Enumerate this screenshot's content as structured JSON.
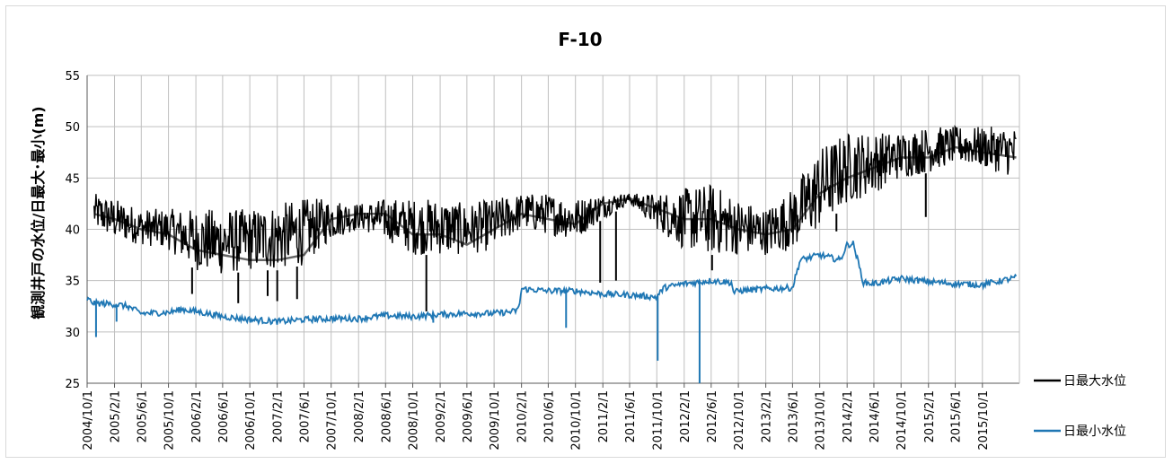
{
  "chart_data": {
    "type": "line",
    "title": "F-10",
    "ylabel": "観測井戸の水位/日最大･最小(m)",
    "xlabel": "",
    "ylim": [
      25,
      55
    ],
    "yticks": [
      25,
      30,
      35,
      40,
      45,
      50,
      55
    ],
    "xlim": [
      "2004/10/1",
      "2016/3/15"
    ],
    "x_tick_labels": [
      "2004/10/1",
      "2005/2/1",
      "2005/6/1",
      "2005/10/1",
      "2006/2/1",
      "2006/6/1",
      "2006/10/1",
      "2007/2/1",
      "2007/6/1",
      "2007/10/1",
      "2008/2/1",
      "2008/6/1",
      "2008/10/1",
      "2009/2/1",
      "2009/6/1",
      "2009/10/1",
      "2010/2/1",
      "2010/6/1",
      "2010/10/1",
      "2011/2/1",
      "2011/6/1",
      "2011/10/1",
      "2012/2/1",
      "2012/6/1",
      "2012/10/1",
      "2013/2/1",
      "2013/6/1",
      "2013/10/1",
      "2014/2/1",
      "2014/6/1",
      "2014/10/1",
      "2015/2/1",
      "2015/6/1",
      "2015/10/1"
    ],
    "grid": "vertical-and-horizontal",
    "legend_position": "right",
    "series": [
      {
        "name": "日最大水位",
        "color": "#000000",
        "x": [
          "2004/11/1",
          "2005/2/1",
          "2005/6/1",
          "2005/10/1",
          "2006/2/1",
          "2006/6/1",
          "2006/10/1",
          "2007/2/1",
          "2007/6/1",
          "2007/10/1",
          "2008/2/1",
          "2008/6/1",
          "2008/10/1",
          "2009/2/1",
          "2009/6/1",
          "2009/10/1",
          "2010/2/1",
          "2010/6/1",
          "2010/10/1",
          "2011/2/1",
          "2011/6/1",
          "2011/10/1",
          "2012/2/1",
          "2012/6/1",
          "2012/10/1",
          "2013/2/1",
          "2013/6/1",
          "2013/10/1",
          "2014/2/1",
          "2014/6/1",
          "2014/10/1",
          "2015/2/1",
          "2015/6/1",
          "2015/10/1",
          "2016/3/1"
        ],
        "values": [
          41.5,
          41.0,
          40.0,
          39.5,
          38.0,
          37.5,
          37.0,
          37.0,
          37.5,
          41.0,
          41.5,
          41.5,
          39.5,
          39.5,
          38.5,
          40.0,
          41.5,
          41.0,
          40.5,
          42.5,
          43.0,
          42.0,
          41.0,
          41.0,
          40.0,
          39.5,
          40.0,
          43.5,
          45.0,
          46.0,
          47.0,
          47.0,
          48.0,
          47.5,
          47.0
        ],
        "band_low": [
          40.0,
          39.0,
          38.5,
          38.0,
          36.0,
          35.5,
          36.0,
          36.0,
          36.5,
          39.0,
          40.0,
          39.0,
          37.5,
          37.5,
          37.5,
          38.0,
          40.0,
          39.5,
          39.0,
          41.0,
          42.5,
          40.0,
          38.0,
          37.5,
          37.5,
          37.5,
          38.0,
          40.0,
          42.5,
          43.5,
          45.0,
          45.5,
          46.5,
          46.0,
          45.0
        ],
        "band_high": [
          43.5,
          43.0,
          42.0,
          42.0,
          42.0,
          42.0,
          42.0,
          42.5,
          43.0,
          43.0,
          42.5,
          43.0,
          43.0,
          43.0,
          42.5,
          43.0,
          43.5,
          43.5,
          43.0,
          43.5,
          43.5,
          43.5,
          44.0,
          44.5,
          43.0,
          42.0,
          44.0,
          48.0,
          49.5,
          49.5,
          49.5,
          50.0,
          50.0,
          50.0,
          50.0
        ],
        "dips": [
          {
            "x": "2006/1/15",
            "value": 33.7
          },
          {
            "x": "2006/8/10",
            "value": 32.8
          },
          {
            "x": "2006/12/20",
            "value": 33.5
          },
          {
            "x": "2007/2/1",
            "value": 33.0
          },
          {
            "x": "2007/5/1",
            "value": 33.2
          },
          {
            "x": "2008/12/1",
            "value": 32.0
          },
          {
            "x": "2011/1/20",
            "value": 34.8
          },
          {
            "x": "2011/4/1",
            "value": 35.0
          },
          {
            "x": "2012/6/5",
            "value": 36.0
          },
          {
            "x": "2013/12/15",
            "value": 39.8
          },
          {
            "x": "2015/1/20",
            "value": 41.2
          }
        ]
      },
      {
        "name": "日最小水位",
        "color": "#1f77b4",
        "x": [
          "2004/10/1",
          "2004/11/1",
          "2005/2/1",
          "2005/4/1",
          "2005/6/1",
          "2005/10/1",
          "2005/12/1",
          "2006/2/1",
          "2006/6/1",
          "2006/10/1",
          "2007/2/1",
          "2007/6/1",
          "2007/10/1",
          "2008/2/1",
          "2008/6/1",
          "2008/10/1",
          "2009/2/1",
          "2009/6/1",
          "2009/10/1",
          "2010/1/1",
          "2010/1/20",
          "2010/2/1",
          "2010/6/1",
          "2010/10/1",
          "2011/2/1",
          "2011/6/1",
          "2011/10/1",
          "2011/11/1",
          "2012/2/1",
          "2012/6/1",
          "2012/9/1",
          "2012/9/10",
          "2012/10/1",
          "2013/2/1",
          "2013/6/1",
          "2013/7/5",
          "2013/10/1",
          "2014/1/1",
          "2014/2/1",
          "2014/3/1",
          "2014/4/15",
          "2014/6/1",
          "2014/10/1",
          "2015/2/1",
          "2015/6/1",
          "2015/10/1",
          "2016/3/1"
        ],
        "values": [
          33.2,
          32.8,
          32.7,
          32.5,
          31.8,
          31.9,
          32.2,
          32.0,
          31.5,
          31.2,
          31.0,
          31.2,
          31.3,
          31.3,
          31.6,
          31.5,
          31.7,
          31.8,
          31.8,
          32.0,
          32.3,
          34.2,
          34.0,
          34.0,
          33.7,
          33.6,
          33.4,
          34.3,
          34.7,
          35.0,
          34.8,
          33.8,
          34.0,
          34.2,
          34.3,
          37.0,
          37.5,
          37.0,
          38.5,
          38.6,
          34.8,
          34.7,
          35.2,
          34.9,
          34.7,
          34.6,
          35.3
        ],
        "spikes": [
          {
            "x": "2004/11/10",
            "value": 29.5
          },
          {
            "x": "2005/2/10",
            "value": 31.0
          },
          {
            "x": "2009/1/1",
            "value": 30.9
          },
          {
            "x": "2010/8/20",
            "value": 30.4
          },
          {
            "x": "2011/10/5",
            "value": 27.2
          },
          {
            "x": "2012/4/10",
            "value": 25.0
          }
        ]
      }
    ]
  }
}
